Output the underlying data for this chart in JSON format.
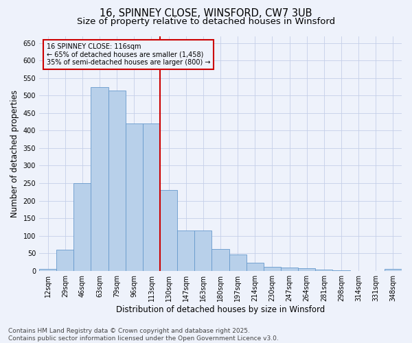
{
  "title": "16, SPINNEY CLOSE, WINSFORD, CW7 3UB",
  "subtitle": "Size of property relative to detached houses in Winsford",
  "xlabel": "Distribution of detached houses by size in Winsford",
  "ylabel": "Number of detached properties",
  "footer_line1": "Contains HM Land Registry data © Crown copyright and database right 2025.",
  "footer_line2": "Contains public sector information licensed under the Open Government Licence v3.0.",
  "categories": [
    "12sqm",
    "29sqm",
    "46sqm",
    "63sqm",
    "79sqm",
    "96sqm",
    "113sqm",
    "130sqm",
    "147sqm",
    "163sqm",
    "180sqm",
    "197sqm",
    "214sqm",
    "230sqm",
    "247sqm",
    "264sqm",
    "281sqm",
    "298sqm",
    "314sqm",
    "331sqm",
    "348sqm"
  ],
  "values": [
    5,
    60,
    250,
    525,
    515,
    420,
    420,
    230,
    115,
    115,
    63,
    47,
    22,
    12,
    10,
    8,
    3,
    1,
    0,
    0,
    5
  ],
  "bar_color": "#b8d0ea",
  "bar_edge_color": "#6699cc",
  "annotation_title": "16 SPINNEY CLOSE: 116sqm",
  "annotation_line1": "← 65% of detached houses are smaller (1,458)",
  "annotation_line2": "35% of semi-detached houses are larger (800) →",
  "vline_color": "#cc0000",
  "annotation_box_edge": "#cc0000",
  "ylim": [
    0,
    670
  ],
  "yticks": [
    0,
    50,
    100,
    150,
    200,
    250,
    300,
    350,
    400,
    450,
    500,
    550,
    600,
    650
  ],
  "background_color": "#eef2fb",
  "grid_color": "#c5cfe8",
  "title_fontsize": 10.5,
  "subtitle_fontsize": 9.5,
  "axis_label_fontsize": 8.5,
  "tick_fontsize": 7,
  "footer_fontsize": 6.5
}
